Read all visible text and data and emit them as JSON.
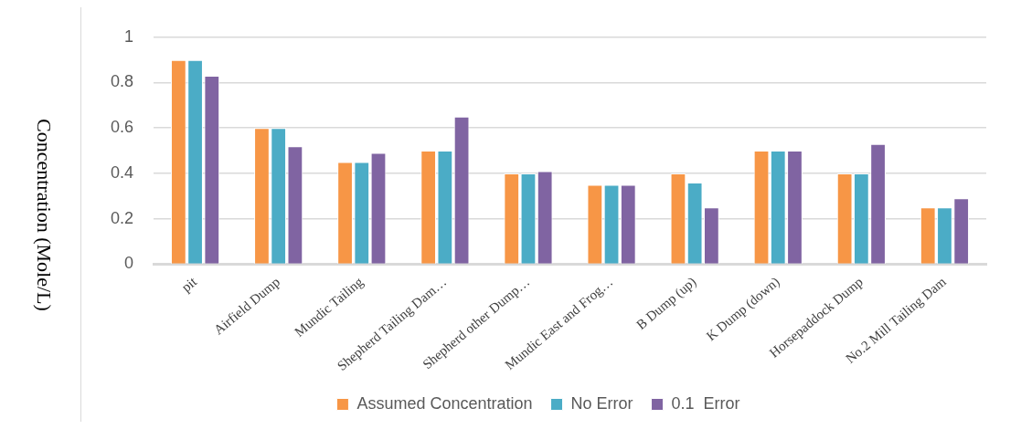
{
  "chart_data": {
    "type": "bar",
    "ylabel": "Concentration (Mole/L)",
    "categories": [
      "pit",
      "Airfield Dump",
      "Mundic Tailing",
      "Shepherd Tailing Dam…",
      "Shepherd other Dump…",
      "Mundic East and Frog…",
      "B Dump (up)",
      "K Dump (down)",
      "Horsepaddock Dump",
      "No.2 Mill Tailing Dam"
    ],
    "series": [
      {
        "name": "Assumed Concentration",
        "color": "#f79646",
        "values": [
          0.9,
          0.6,
          0.45,
          0.5,
          0.4,
          0.35,
          0.4,
          0.5,
          0.4,
          0.25
        ]
      },
      {
        "name": "No Error",
        "color": "#4bacc6",
        "values": [
          0.9,
          0.6,
          0.45,
          0.5,
          0.4,
          0.35,
          0.36,
          0.5,
          0.4,
          0.25
        ]
      },
      {
        "name": "0.1  Error",
        "color": "#8064a2",
        "values": [
          0.83,
          0.52,
          0.49,
          0.65,
          0.41,
          0.35,
          0.25,
          0.5,
          0.53,
          0.29
        ]
      }
    ],
    "ylim": [
      0,
      1
    ],
    "yticks": [
      0,
      0.2,
      0.4,
      0.6,
      0.8,
      1
    ],
    "grid": "y",
    "legend": "bottom"
  }
}
